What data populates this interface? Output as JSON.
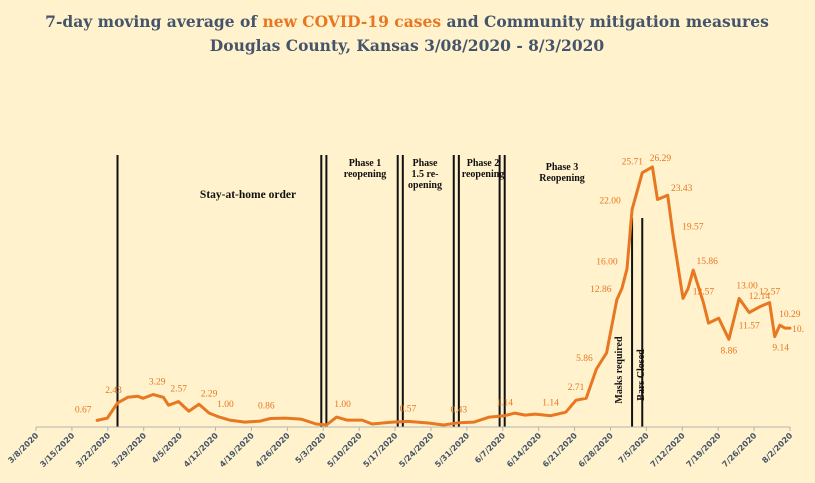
{
  "chart_data": {
    "type": "line",
    "title_part1": "7-day moving average of ",
    "title_highlight": "new COVID-19 cases",
    "title_part3": " and Community mitigation measures",
    "subtitle": "Douglas County, Kansas 3/08/2020 - 8/3/2020",
    "accent_color": "#e87722",
    "title_color": "#44546a",
    "background_color": "#fff2cc",
    "grid": false,
    "ylim": [
      0,
      28
    ],
    "xlim": [
      "2020-03-08",
      "2020-08-03"
    ],
    "x_ticks": [
      "3/8/2020",
      "3/15/2020",
      "3/22/2020",
      "3/29/2020",
      "4/5/2020",
      "4/12/2020",
      "4/19/2020",
      "4/26/2020",
      "5/3/2020",
      "5/10/2020",
      "5/17/2020",
      "5/24/2020",
      "5/31/2020",
      "6/7/2020",
      "6/14/2020",
      "6/21/2020",
      "6/28/2020",
      "7/5/2020",
      "7/12/2020",
      "7/19/2020",
      "7/26/2020",
      "8/2/2020"
    ],
    "series": [
      {
        "points": [
          [
            "2020-03-20",
            0.67
          ],
          [
            "2020-03-22",
            0.9
          ],
          [
            "2020-03-24",
            2.43
          ],
          [
            "2020-03-26",
            3.0
          ],
          [
            "2020-03-28",
            3.1
          ],
          [
            "2020-03-29",
            2.9
          ],
          [
            "2020-03-31",
            3.29
          ],
          [
            "2020-04-02",
            3.0
          ],
          [
            "2020-04-03",
            2.2
          ],
          [
            "2020-04-05",
            2.57
          ],
          [
            "2020-04-07",
            1.6
          ],
          [
            "2020-04-09",
            2.29
          ],
          [
            "2020-04-11",
            1.4
          ],
          [
            "2020-04-13",
            1.0
          ],
          [
            "2020-04-15",
            0.7
          ],
          [
            "2020-04-18",
            0.5
          ],
          [
            "2020-04-21",
            0.6
          ],
          [
            "2020-04-23",
            0.86
          ],
          [
            "2020-04-26",
            0.9
          ],
          [
            "2020-04-29",
            0.8
          ],
          [
            "2020-05-02",
            0.3
          ],
          [
            "2020-05-04",
            0.2
          ],
          [
            "2020-05-06",
            1.0
          ],
          [
            "2020-05-08",
            0.7
          ],
          [
            "2020-05-11",
            0.7
          ],
          [
            "2020-05-13",
            0.3
          ],
          [
            "2020-05-17",
            0.5
          ],
          [
            "2020-05-20",
            0.57
          ],
          [
            "2020-05-24",
            0.4
          ],
          [
            "2020-05-27",
            0.2
          ],
          [
            "2020-05-30",
            0.43
          ],
          [
            "2020-06-02",
            0.5
          ],
          [
            "2020-06-05",
            1.0
          ],
          [
            "2020-06-08",
            1.14
          ],
          [
            "2020-06-10",
            1.4
          ],
          [
            "2020-06-12",
            1.2
          ],
          [
            "2020-06-14",
            1.3
          ],
          [
            "2020-06-17",
            1.14
          ],
          [
            "2020-06-20",
            1.5
          ],
          [
            "2020-06-22",
            2.71
          ],
          [
            "2020-06-24",
            2.9
          ],
          [
            "2020-06-26",
            5.86
          ],
          [
            "2020-06-28",
            7.5
          ],
          [
            "2020-06-30",
            12.86
          ],
          [
            "2020-07-01",
            14.0
          ],
          [
            "2020-07-02",
            16.0
          ],
          [
            "2020-07-03",
            22.0
          ],
          [
            "2020-07-05",
            25.71
          ],
          [
            "2020-07-07",
            26.29
          ],
          [
            "2020-07-08",
            23.0
          ],
          [
            "2020-07-10",
            23.43
          ],
          [
            "2020-07-11",
            19.57
          ],
          [
            "2020-07-13",
            13.0
          ],
          [
            "2020-07-14",
            14.0
          ],
          [
            "2020-07-15",
            15.86
          ],
          [
            "2020-07-17",
            12.57
          ],
          [
            "2020-07-18",
            10.5
          ],
          [
            "2020-07-20",
            11.0
          ],
          [
            "2020-07-22",
            8.86
          ],
          [
            "2020-07-24",
            13.0
          ],
          [
            "2020-07-26",
            11.57
          ],
          [
            "2020-07-28",
            12.14
          ],
          [
            "2020-07-30",
            12.57
          ],
          [
            "2020-07-31",
            9.14
          ],
          [
            "2020-08-01",
            10.29
          ],
          [
            "2020-08-02",
            10.0
          ],
          [
            "2020-08-03",
            10.0
          ]
        ]
      }
    ],
    "data_labels": [
      {
        "date": "2020-03-20",
        "value": 0.67,
        "text": "0.67"
      },
      {
        "date": "2020-03-24",
        "value": 2.43,
        "text": "2.43"
      },
      {
        "date": "2020-03-31",
        "value": 3.29,
        "text": "3.29"
      },
      {
        "date": "2020-04-05",
        "value": 2.57,
        "text": "2.57"
      },
      {
        "date": "2020-04-09",
        "value": 2.29,
        "text": "2.29"
      },
      {
        "date": "2020-04-13",
        "value": 1.0,
        "text": "1.00"
      },
      {
        "date": "2020-04-23",
        "value": 0.86,
        "text": "0.86"
      },
      {
        "date": "2020-05-06",
        "value": 1.0,
        "text": "1.00"
      },
      {
        "date": "2020-05-20",
        "value": 0.57,
        "text": "0.57"
      },
      {
        "date": "2020-05-30",
        "value": 0.43,
        "text": "0.43"
      },
      {
        "date": "2020-06-08",
        "value": 1.14,
        "text": "1.14"
      },
      {
        "date": "2020-06-17",
        "value": 1.14,
        "text": "1.14"
      },
      {
        "date": "2020-06-22",
        "value": 2.71,
        "text": "2.71"
      },
      {
        "date": "2020-06-26",
        "value": 5.86,
        "text": "5.86"
      },
      {
        "date": "2020-06-30",
        "value": 12.86,
        "text": "12.86"
      },
      {
        "date": "2020-07-02",
        "value": 16.0,
        "text": "16.00"
      },
      {
        "date": "2020-07-03",
        "value": 22.0,
        "text": "22.00"
      },
      {
        "date": "2020-07-05",
        "value": 25.71,
        "text": "25.71"
      },
      {
        "date": "2020-07-07",
        "value": 26.29,
        "text": "26.29"
      },
      {
        "date": "2020-07-10",
        "value": 23.43,
        "text": "23.43"
      },
      {
        "date": "2020-07-11",
        "value": 19.57,
        "text": "19.57"
      },
      {
        "date": "2020-07-15",
        "value": 15.86,
        "text": "15.86"
      },
      {
        "date": "2020-07-17",
        "value": 12.57,
        "text": "12.57"
      },
      {
        "date": "2020-07-22",
        "value": 8.86,
        "text": "8.86"
      },
      {
        "date": "2020-07-24",
        "value": 13.0,
        "text": "13.00"
      },
      {
        "date": "2020-07-26",
        "value": 11.57,
        "text": "11.57"
      },
      {
        "date": "2020-07-28",
        "value": 12.14,
        "text": "12.14"
      },
      {
        "date": "2020-07-30",
        "value": 12.57,
        "text": "12.57"
      },
      {
        "date": "2020-07-31",
        "value": 9.14,
        "text": "9.14"
      },
      {
        "date": "2020-08-01",
        "value": 10.29,
        "text": "10.29"
      },
      {
        "date": "2020-08-03",
        "value": 10.0,
        "text": "10."
      }
    ],
    "mitigation_lines": [
      {
        "date": "2020-03-24"
      },
      {
        "date": "2020-05-03"
      },
      {
        "date": "2020-05-04"
      },
      {
        "date": "2020-05-18"
      },
      {
        "date": "2020-05-19"
      },
      {
        "date": "2020-05-29"
      },
      {
        "date": "2020-05-30"
      },
      {
        "date": "2020-06-07"
      },
      {
        "date": "2020-06-08"
      },
      {
        "date": "2020-07-03"
      },
      {
        "date": "2020-07-05"
      }
    ],
    "phase_annotations": [
      {
        "lines": [
          "Stay-at-home order"
        ],
        "size": "big"
      },
      {
        "lines": [
          "Phase 1",
          "reopening"
        ],
        "size": "normal"
      },
      {
        "lines": [
          "Phase",
          "1.5 re-",
          "opening"
        ],
        "size": "normal"
      },
      {
        "lines": [
          "Phase 2",
          "reopening"
        ],
        "size": "normal"
      },
      {
        "lines": [
          "Phase 3",
          "Reopening"
        ],
        "size": "normal"
      }
    ],
    "vertical_annotations": [
      {
        "text": "Masks required"
      },
      {
        "text": "Bars Closed"
      }
    ]
  }
}
